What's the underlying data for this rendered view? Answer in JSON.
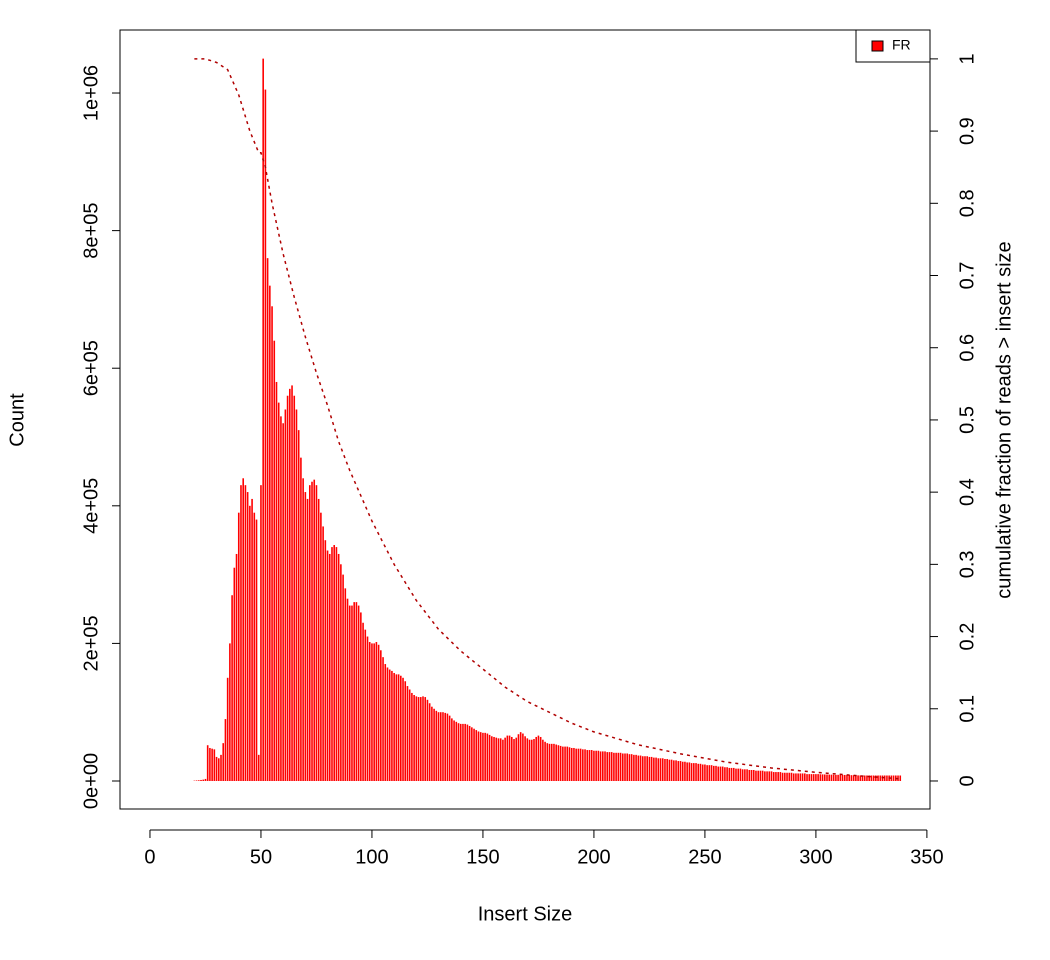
{
  "chart_data": {
    "type": "bar",
    "x_label": "Insert Size",
    "y_label": "Count",
    "y2_label": "cumulative fraction of reads > insert size",
    "legend": "topright",
    "xlim": [
      -13.5,
      351.4
    ],
    "xticks": [
      0,
      50,
      100,
      150,
      200,
      250,
      300,
      350
    ],
    "ylim": [
      -40700,
      1091600
    ],
    "yticks": [
      {
        "value": 0,
        "label": "0e+00"
      },
      {
        "value": 200000,
        "label": "2e+05"
      },
      {
        "value": 400000,
        "label": "4e+05"
      },
      {
        "value": 600000,
        "label": "6e+05"
      },
      {
        "value": 800000,
        "label": "8e+05"
      },
      {
        "value": 1000000,
        "label": "1e+06"
      }
    ],
    "y2lim": [
      -0.0388,
      1.04
    ],
    "y2ticks": [
      0,
      0.1,
      0.2,
      0.3,
      0.4,
      0.5,
      0.6,
      0.7,
      0.8,
      0.9,
      1
    ],
    "x": [
      20,
      21,
      22,
      23,
      24,
      25,
      26,
      27,
      28,
      29,
      30,
      31,
      32,
      33,
      34,
      35,
      36,
      37,
      38,
      39,
      40,
      41,
      42,
      43,
      44,
      45,
      46,
      47,
      48,
      49,
      50,
      51,
      52,
      53,
      54,
      55,
      56,
      57,
      58,
      59,
      60,
      61,
      62,
      63,
      64,
      65,
      66,
      67,
      68,
      69,
      70,
      71,
      72,
      73,
      74,
      75,
      76,
      77,
      78,
      79,
      80,
      81,
      82,
      83,
      84,
      85,
      86,
      87,
      88,
      89,
      90,
      91,
      92,
      93,
      94,
      95,
      96,
      97,
      98,
      99,
      100,
      101,
      102,
      103,
      104,
      105,
      106,
      107,
      108,
      109,
      110,
      111,
      112,
      113,
      114,
      115,
      116,
      117,
      118,
      119,
      120,
      121,
      122,
      123,
      124,
      125,
      126,
      127,
      128,
      129,
      130,
      131,
      132,
      133,
      134,
      135,
      136,
      137,
      138,
      139,
      140,
      141,
      142,
      143,
      144,
      145,
      146,
      147,
      148,
      149,
      150,
      151,
      152,
      153,
      154,
      155,
      156,
      157,
      158,
      159,
      160,
      161,
      162,
      163,
      164,
      165,
      166,
      167,
      168,
      169,
      170,
      171,
      172,
      173,
      174,
      175,
      176,
      177,
      178,
      179,
      180,
      181,
      182,
      183,
      184,
      185,
      186,
      187,
      188,
      189,
      190,
      191,
      192,
      193,
      194,
      195,
      196,
      197,
      198,
      199,
      200,
      201,
      202,
      203,
      204,
      205,
      206,
      207,
      208,
      209,
      210,
      211,
      212,
      213,
      214,
      215,
      216,
      217,
      218,
      219,
      220,
      221,
      222,
      223,
      224,
      225,
      226,
      227,
      228,
      229,
      230,
      231,
      232,
      233,
      234,
      235,
      236,
      237,
      238,
      239,
      240,
      241,
      242,
      243,
      244,
      245,
      246,
      247,
      248,
      249,
      250,
      251,
      252,
      253,
      254,
      255,
      256,
      257,
      258,
      259,
      260,
      261,
      262,
      263,
      264,
      265,
      266,
      267,
      268,
      269,
      270,
      271,
      272,
      273,
      274,
      275,
      276,
      277,
      278,
      279,
      280,
      281,
      282,
      283,
      284,
      285,
      286,
      287,
      288,
      289,
      290,
      291,
      292,
      293,
      294,
      295,
      296,
      297,
      298,
      299,
      300,
      301,
      302,
      303,
      304,
      305,
      306,
      307,
      308,
      309,
      310,
      311,
      312,
      313,
      314,
      315,
      316,
      317,
      318,
      319,
      320,
      321,
      322,
      323,
      324,
      325,
      326,
      327,
      328,
      329,
      330,
      331,
      332,
      333,
      334,
      335,
      336,
      337,
      338
    ],
    "series": [
      {
        "name": "FR",
        "color": "#ff0000",
        "values": [
          500,
          800,
          1000,
          1500,
          2000,
          3000,
          52000,
          48000,
          47000,
          46000,
          35000,
          33000,
          38000,
          55000,
          90000,
          150000,
          200000,
          270000,
          310000,
          330000,
          390000,
          430000,
          440000,
          430000,
          420000,
          400000,
          410000,
          390000,
          380000,
          38000,
          430000,
          1050000,
          1005000,
          760000,
          720000,
          690000,
          640000,
          580000,
          550000,
          530000,
          520000,
          540000,
          560000,
          570000,
          575000,
          560000,
          540000,
          510000,
          470000,
          440000,
          420000,
          410000,
          430000,
          435000,
          438000,
          430000,
          410000,
          390000,
          370000,
          350000,
          335000,
          330000,
          340000,
          343000,
          340000,
          330000,
          315000,
          300000,
          280000,
          265000,
          255000,
          255000,
          260000,
          260000,
          255000,
          245000,
          230000,
          220000,
          210000,
          202000,
          200000,
          200000,
          202000,
          198000,
          190000,
          180000,
          170000,
          165000,
          162000,
          160000,
          157000,
          155000,
          155000,
          153000,
          150000,
          145000,
          138000,
          133000,
          128000,
          125000,
          123000,
          122000,
          122000,
          123000,
          122000,
          118000,
          113000,
          108000,
          105000,
          102000,
          100000,
          100000,
          100000,
          99000,
          98000,
          95000,
          91000,
          88000,
          86000,
          84000,
          83000,
          83000,
          83000,
          82000,
          80000,
          78000,
          76000,
          74000,
          72000,
          71000,
          70000,
          70000,
          69000,
          67000,
          65000,
          64000,
          63000,
          62000,
          62000,
          60000,
          63000,
          66000,
          66000,
          64000,
          61000,
          63000,
          68000,
          71000,
          69000,
          65000,
          62000,
          60000,
          60000,
          61000,
          64000,
          66000,
          64000,
          60000,
          57000,
          55000,
          54000,
          54000,
          54000,
          53000,
          52000,
          51000,
          50000,
          50000,
          50000,
          49000,
          48000,
          48000,
          47000,
          47000,
          47000,
          46000,
          46000,
          45000,
          45000,
          45000,
          44000,
          44000,
          44000,
          43000,
          43000,
          43000,
          42000,
          42000,
          42000,
          41000,
          41000,
          41000,
          41000,
          40000,
          40000,
          40000,
          39000,
          39000,
          38000,
          38000,
          37000,
          37000,
          36000,
          36000,
          36000,
          35000,
          35000,
          34000,
          34000,
          33000,
          33000,
          33000,
          32000,
          32000,
          31000,
          31000,
          30000,
          30000,
          29000,
          29000,
          28000,
          28000,
          27000,
          27000,
          26000,
          26000,
          26000,
          25000,
          25000,
          24000,
          24000,
          23000,
          23000,
          23000,
          22000,
          22000,
          21000,
          21000,
          21000,
          20000,
          20000,
          19000,
          19000,
          19000,
          18000,
          18000,
          18000,
          17000,
          17000,
          17000,
          16000,
          16000,
          16000,
          15000,
          15000,
          15000,
          15000,
          14000,
          14000,
          14000,
          14000,
          13000,
          13000,
          13000,
          13000,
          12000,
          12000,
          12000,
          12000,
          12000,
          11000,
          11000,
          11000,
          11000,
          11000,
          11000,
          10000,
          10000,
          10000,
          10000,
          10000,
          10000,
          9800,
          9600,
          9500,
          9400,
          9300,
          9200,
          9100,
          9000,
          9000,
          9000,
          8900,
          8800,
          8700,
          8600,
          8500,
          8400,
          8300,
          8200,
          8100,
          8000,
          8000,
          8000,
          8000,
          8000,
          8000,
          8000,
          8000,
          8000,
          8000,
          8000,
          8000,
          8000,
          8000,
          8000,
          8000,
          8000,
          8000
        ]
      },
      {
        "type": "line",
        "axis": "y2",
        "color": "#b00000",
        "dashed": true,
        "x": [
          20,
          25,
          30,
          35,
          40,
          45,
          49,
          50,
          52,
          55,
          60,
          65,
          70,
          75,
          80,
          85,
          90,
          95,
          100,
          110,
          120,
          130,
          140,
          150,
          160,
          170,
          180,
          190,
          200,
          220,
          240,
          260,
          280,
          300,
          320,
          338
        ],
        "values": [
          1,
          1,
          0.995,
          0.985,
          0.95,
          0.9,
          0.87,
          0.87,
          0.85,
          0.8,
          0.73,
          0.67,
          0.615,
          0.565,
          0.52,
          0.47,
          0.43,
          0.395,
          0.36,
          0.3,
          0.25,
          0.21,
          0.18,
          0.155,
          0.13,
          0.11,
          0.095,
          0.08,
          0.068,
          0.05,
          0.037,
          0.026,
          0.018,
          0.012,
          0.007,
          0.003
        ]
      }
    ]
  }
}
